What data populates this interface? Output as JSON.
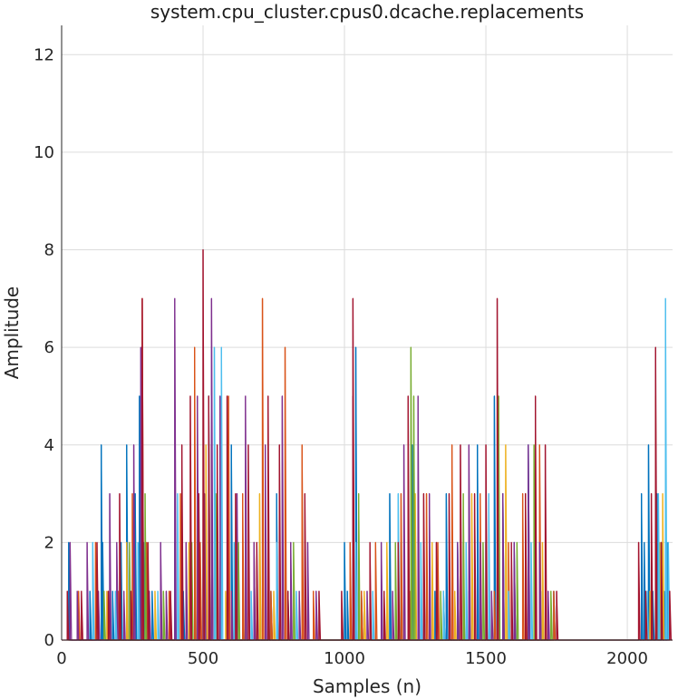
{
  "chart_data": {
    "type": "line",
    "title": "system.cpu_cluster.cpus0.dcache.replacements",
    "xlabel": "Samples (n)",
    "ylabel": "Amplitude",
    "xlim": [
      0,
      2160
    ],
    "ylim": [
      0,
      12.6
    ],
    "xticks": [
      0,
      500,
      1000,
      1500,
      2000
    ],
    "yticks": [
      0,
      2,
      4,
      6,
      8,
      10,
      12
    ],
    "grid": true,
    "legend": "none",
    "colors": [
      "#0072BD",
      "#D95319",
      "#EDB120",
      "#7E2F8E",
      "#77AC30",
      "#4DBEEE",
      "#A2142F"
    ],
    "series": [
      {
        "color": "#0072BD",
        "x": [
          25,
          100,
          140,
          145,
          180,
          210,
          230,
          260,
          275,
          290,
          320,
          400,
          430,
          470,
          520,
          560,
          600,
          640,
          700,
          740,
          760,
          800,
          1000,
          1010,
          1040,
          1060,
          1160,
          1200,
          1240,
          1280,
          1320,
          1360,
          1400,
          1440,
          1470,
          1500,
          1530,
          1560,
          1600,
          1650,
          1700,
          1740,
          2050,
          2060,
          2075,
          2090,
          2105,
          2120,
          2130,
          2140
        ],
        "values": [
          2,
          1,
          4,
          2,
          1,
          2,
          4,
          3,
          5,
          2,
          1,
          2,
          1,
          3,
          5,
          2,
          4,
          1,
          2,
          1,
          3,
          1,
          2,
          1,
          6,
          1,
          3,
          2,
          4,
          2,
          1,
          3,
          2,
          1,
          4,
          2,
          5,
          3,
          2,
          4,
          1,
          1,
          3,
          2,
          4,
          1,
          3,
          2,
          1,
          2
        ]
      },
      {
        "color": "#D95319",
        "x": [
          60,
          120,
          200,
          250,
          285,
          300,
          380,
          420,
          470,
          490,
          530,
          590,
          640,
          680,
          710,
          740,
          790,
          850,
          890,
          1020,
          1060,
          1110,
          1200,
          1230,
          1290,
          1330,
          1380,
          1420,
          1480,
          1530,
          1580,
          1630,
          1690,
          1740
        ],
        "values": [
          1,
          2,
          1,
          3,
          7,
          2,
          1,
          3,
          6,
          2,
          4,
          5,
          3,
          2,
          7,
          1,
          6,
          4,
          1,
          2,
          1,
          2,
          3,
          1,
          3,
          2,
          4,
          2,
          3,
          1,
          2,
          3,
          4,
          1
        ]
      },
      {
        "color": "#EDB120",
        "x": [
          160,
          230,
          280,
          330,
          450,
          510,
          580,
          650,
          700,
          750,
          1070,
          1150,
          1250,
          1310,
          1390,
          1450,
          1510,
          1570,
          1640,
          1700,
          2080,
          2100,
          2115,
          2125
        ],
        "values": [
          1,
          2,
          3,
          1,
          2,
          4,
          1,
          2,
          3,
          1,
          1,
          2,
          3,
          2,
          1,
          3,
          2,
          4,
          3,
          2,
          1,
          5,
          2,
          3
        ]
      },
      {
        "color": "#7E2F8E",
        "x": [
          30,
          55,
          90,
          130,
          170,
          195,
          220,
          255,
          280,
          310,
          350,
          370,
          400,
          440,
          480,
          505,
          530,
          560,
          600,
          620,
          650,
          680,
          720,
          760,
          780,
          810,
          840,
          870,
          900,
          1030,
          1080,
          1130,
          1170,
          1210,
          1260,
          1300,
          1350,
          1400,
          1440,
          1480,
          1520,
          1560,
          1600,
          1650,
          1690,
          1720
        ],
        "values": [
          2,
          1,
          2,
          1,
          3,
          2,
          1,
          4,
          6,
          1,
          2,
          1,
          7,
          2,
          5,
          3,
          7,
          5,
          1,
          3,
          5,
          2,
          4,
          2,
          5,
          2,
          1,
          2,
          1,
          5,
          1,
          2,
          1,
          4,
          5,
          3,
          1,
          2,
          4,
          2,
          1,
          3,
          2,
          4,
          2,
          1
        ]
      },
      {
        "color": "#77AC30",
        "x": [
          150,
          240,
          295,
          360,
          460,
          545,
          625,
          730,
          820,
          1050,
          1180,
          1235,
          1245,
          1340,
          1420,
          1490,
          1545,
          1610,
          1670,
          1730
        ],
        "values": [
          1,
          2,
          3,
          1,
          2,
          3,
          2,
          1,
          2,
          3,
          2,
          6,
          5,
          1,
          3,
          2,
          5,
          2,
          4,
          1
        ]
      },
      {
        "color": "#4DBEEE",
        "x": [
          110,
          190,
          270,
          340,
          410,
          500,
          540,
          565,
          610,
          670,
          760,
          830,
          1040,
          1100,
          1190,
          1270,
          1350,
          1430,
          1510,
          1580,
          1660,
          2070,
          2110,
          2135,
          2145
        ],
        "values": [
          2,
          1,
          2,
          1,
          3,
          2,
          6,
          6,
          2,
          1,
          2,
          1,
          2,
          1,
          3,
          2,
          1,
          2,
          3,
          1,
          2,
          1,
          3,
          7,
          2
        ]
      },
      {
        "color": "#A2142F",
        "x": [
          20,
          70,
          125,
          165,
          205,
          245,
          285,
          305,
          385,
          425,
          455,
          485,
          500,
          520,
          550,
          585,
          615,
          660,
          690,
          730,
          770,
          800,
          860,
          910,
          990,
          1030,
          1090,
          1140,
          1190,
          1225,
          1280,
          1325,
          1370,
          1410,
          1460,
          1500,
          1540,
          1590,
          1640,
          1675,
          1710,
          1750,
          2040,
          2065,
          2085,
          2100,
          2120,
          2150
        ],
        "values": [
          1,
          1,
          2,
          1,
          3,
          1,
          7,
          2,
          1,
          4,
          5,
          3,
          8,
          5,
          4,
          5,
          3,
          4,
          2,
          5,
          4,
          1,
          3,
          1,
          1,
          7,
          2,
          1,
          2,
          5,
          3,
          2,
          3,
          4,
          3,
          4,
          7,
          2,
          3,
          5,
          4,
          1,
          2,
          1,
          3,
          6,
          2,
          1
        ]
      }
    ]
  }
}
